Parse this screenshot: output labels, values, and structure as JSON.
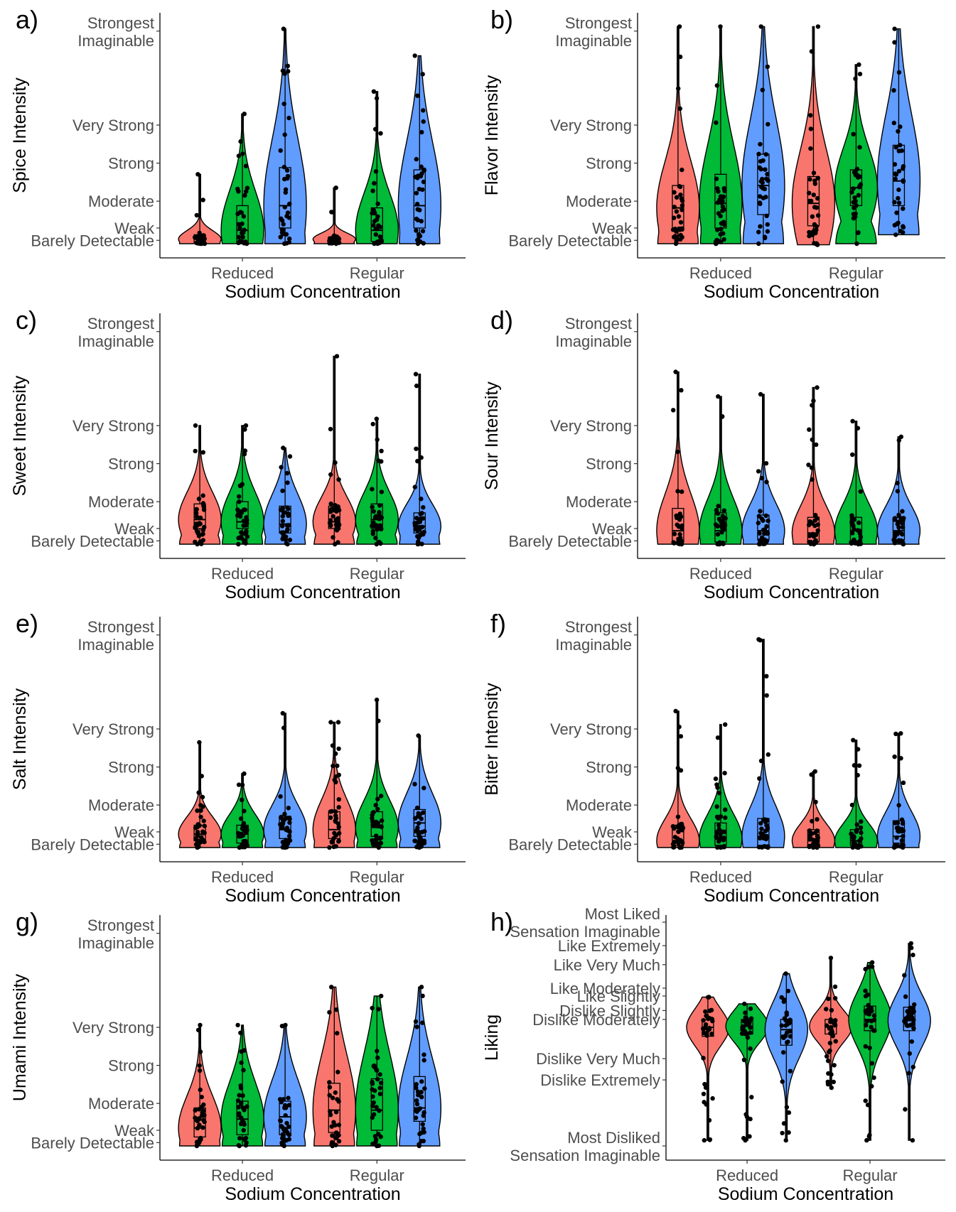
{
  "colors": {
    "red": "#F8766D",
    "green": "#00BA38",
    "blue": "#619CFF"
  },
  "scales": {
    "intensity": [
      "Strongest Imaginable",
      "Very Strong",
      "Strong",
      "Moderate",
      "Weak",
      "Barely Detectable"
    ],
    "liking": [
      "Most Liked Sensation Imaginable",
      "Like Extremely",
      "Like Very Much",
      "Like Moderately",
      "Like Slightly",
      "Dislike Slightly",
      "Dislike Moderately",
      "Dislike Very Much",
      "Dislike Extremely",
      "Most Disliked Sensation Imaginable"
    ]
  },
  "chart_data": [
    {
      "panel": "a)",
      "type": "violin",
      "ylabel": "Spice Intensity",
      "xlabel": "Sodium Concentration",
      "categories": [
        "Reduced",
        "Regular"
      ],
      "y_scale": "intensity",
      "ylim": [
        0,
        100
      ],
      "groups": [
        {
          "category": "Reduced",
          "color": "red",
          "min": 0,
          "q1": 0.5,
          "median": 2,
          "q3": 4,
          "max": 31
        },
        {
          "category": "Reduced",
          "color": "green",
          "min": 0,
          "q1": 1,
          "median": 6,
          "q3": 17,
          "max": 58
        },
        {
          "category": "Reduced",
          "color": "blue",
          "min": 0,
          "q1": 7,
          "median": 17,
          "q3": 34,
          "max": 96
        },
        {
          "category": "Regular",
          "color": "red",
          "min": 0,
          "q1": 0.5,
          "median": 2,
          "q3": 3,
          "max": 25
        },
        {
          "category": "Regular",
          "color": "green",
          "min": 0,
          "q1": 1,
          "median": 6,
          "q3": 16,
          "max": 68
        },
        {
          "category": "Regular",
          "color": "blue",
          "min": 0,
          "q1": 7,
          "median": 17,
          "q3": 33,
          "max": 84
        }
      ]
    },
    {
      "panel": "b)",
      "type": "violin",
      "ylabel": "Flavor Intensity",
      "xlabel": "Sodium Concentration",
      "categories": [
        "Reduced",
        "Regular"
      ],
      "y_scale": "intensity",
      "ylim": [
        0,
        100
      ],
      "groups": [
        {
          "category": "Reduced",
          "color": "red",
          "min": 0,
          "q1": 7,
          "median": 16,
          "q3": 26,
          "max": 97
        },
        {
          "category": "Reduced",
          "color": "green",
          "min": 0,
          "q1": 7,
          "median": 18,
          "q3": 31,
          "max": 97
        },
        {
          "category": "Reduced",
          "color": "blue",
          "min": 0,
          "q1": 13,
          "median": 26,
          "q3": 40,
          "max": 97
        },
        {
          "category": "Regular",
          "color": "red",
          "min": -0.5,
          "q1": 8,
          "median": 18,
          "q3": 30,
          "max": 97
        },
        {
          "category": "Regular",
          "color": "green",
          "min": 0,
          "q1": 17,
          "median": 25,
          "q3": 33,
          "max": 80
        },
        {
          "category": "Regular",
          "color": "blue",
          "min": 4,
          "q1": 17,
          "median": 28,
          "q3": 44,
          "max": 96
        }
      ]
    },
    {
      "panel": "c)",
      "type": "violin",
      "ylabel": "Sweet Intensity",
      "xlabel": "Sodium Concentration",
      "categories": [
        "Reduced",
        "Regular"
      ],
      "y_scale": "intensity",
      "ylim": [
        0,
        100
      ],
      "groups": [
        {
          "category": "Reduced",
          "color": "red",
          "min": 0,
          "q1": 7,
          "median": 11,
          "q3": 18,
          "max": 53
        },
        {
          "category": "Reduced",
          "color": "green",
          "min": 0,
          "q1": 7,
          "median": 10,
          "q3": 19,
          "max": 53
        },
        {
          "category": "Reduced",
          "color": "blue",
          "min": 0,
          "q1": 5,
          "median": 9,
          "q3": 17,
          "max": 43
        },
        {
          "category": "Regular",
          "color": "red",
          "min": 0,
          "q1": 7,
          "median": 10,
          "q3": 17,
          "max": 84
        },
        {
          "category": "Regular",
          "color": "green",
          "min": 0,
          "q1": 7,
          "median": 11,
          "q3": 18,
          "max": 56
        },
        {
          "category": "Regular",
          "color": "blue",
          "min": 0,
          "q1": 5,
          "median": 8,
          "q3": 14,
          "max": 76
        }
      ]
    },
    {
      "panel": "d)",
      "type": "violin",
      "ylabel": "Sour Intensity",
      "xlabel": "Sodium Concentration",
      "categories": [
        "Reduced",
        "Regular"
      ],
      "y_scale": "intensity",
      "ylim": [
        0,
        100
      ],
      "groups": [
        {
          "category": "Reduced",
          "color": "red",
          "min": 0,
          "q1": 1,
          "median": 6,
          "q3": 16,
          "max": 77
        },
        {
          "category": "Reduced",
          "color": "green",
          "min": 0,
          "q1": 1,
          "median": 6,
          "q3": 14,
          "max": 66
        },
        {
          "category": "Reduced",
          "color": "blue",
          "min": 0,
          "q1": 2,
          "median": 6,
          "q3": 13,
          "max": 67
        },
        {
          "category": "Regular",
          "color": "red",
          "min": 0,
          "q1": 1,
          "median": 5,
          "q3": 12,
          "max": 70
        },
        {
          "category": "Regular",
          "color": "green",
          "min": 0,
          "q1": 1,
          "median": 6,
          "q3": 12,
          "max": 55
        },
        {
          "category": "Regular",
          "color": "blue",
          "min": 0,
          "q1": 2,
          "median": 6,
          "q3": 12,
          "max": 48
        }
      ]
    },
    {
      "panel": "e)",
      "type": "violin",
      "ylabel": "Salt Intensity",
      "xlabel": "Sodium Concentration",
      "categories": [
        "Reduced",
        "Regular"
      ],
      "y_scale": "intensity",
      "ylim": [
        0,
        100
      ],
      "groups": [
        {
          "category": "Reduced",
          "color": "red",
          "min": 0,
          "q1": 3,
          "median": 6,
          "q3": 10,
          "max": 47
        },
        {
          "category": "Reduced",
          "color": "green",
          "min": 0,
          "q1": 2,
          "median": 6,
          "q3": 10,
          "max": 33
        },
        {
          "category": "Reduced",
          "color": "blue",
          "min": 0,
          "q1": 4,
          "median": 8,
          "q3": 14,
          "max": 60
        },
        {
          "category": "Regular",
          "color": "red",
          "min": 0,
          "q1": 4,
          "median": 8,
          "q3": 16,
          "max": 56
        },
        {
          "category": "Regular",
          "color": "green",
          "min": 0,
          "q1": 5,
          "median": 9,
          "q3": 16,
          "max": 66
        },
        {
          "category": "Regular",
          "color": "blue",
          "min": 0,
          "q1": 5,
          "median": 11,
          "q3": 17,
          "max": 50
        }
      ]
    },
    {
      "panel": "f)",
      "type": "violin",
      "ylabel": "Bitter Intensity",
      "xlabel": "Sodium Concentration",
      "categories": [
        "Reduced",
        "Regular"
      ],
      "y_scale": "intensity",
      "ylim": [
        0,
        100
      ],
      "groups": [
        {
          "category": "Reduced",
          "color": "red",
          "min": 0,
          "q1": 1,
          "median": 3,
          "q3": 10,
          "max": 61
        },
        {
          "category": "Reduced",
          "color": "green",
          "min": 0,
          "q1": 1,
          "median": 4,
          "q3": 11,
          "max": 55
        },
        {
          "category": "Reduced",
          "color": "blue",
          "min": 0,
          "q1": 1,
          "median": 5,
          "q3": 13,
          "max": 93
        },
        {
          "category": "Regular",
          "color": "red",
          "min": 0,
          "q1": 1,
          "median": 3,
          "q3": 8,
          "max": 34
        },
        {
          "category": "Regular",
          "color": "green",
          "min": 0,
          "q1": 1,
          "median": 3,
          "q3": 8,
          "max": 48
        },
        {
          "category": "Regular",
          "color": "blue",
          "min": 0,
          "q1": 2,
          "median": 5,
          "q3": 12,
          "max": 51
        }
      ]
    },
    {
      "panel": "g)",
      "type": "violin",
      "ylabel": "Umami Intensity",
      "xlabel": "Sodium Concentration",
      "categories": [
        "Reduced",
        "Regular"
      ],
      "y_scale": "intensity",
      "ylim": [
        0,
        100
      ],
      "groups": [
        {
          "category": "Reduced",
          "color": "red",
          "min": 0,
          "q1": 4,
          "median": 8,
          "q3": 17,
          "max": 54
        },
        {
          "category": "Reduced",
          "color": "green",
          "min": 0,
          "q1": 5,
          "median": 12,
          "q3": 20,
          "max": 54
        },
        {
          "category": "Reduced",
          "color": "blue",
          "min": 0,
          "q1": 5,
          "median": 13,
          "q3": 20,
          "max": 54
        },
        {
          "category": "Regular",
          "color": "red",
          "min": 0,
          "q1": 6,
          "median": 16,
          "q3": 28,
          "max": 71
        },
        {
          "category": "Regular",
          "color": "green",
          "min": 0,
          "q1": 7,
          "median": 16,
          "q3": 30,
          "max": 67
        },
        {
          "category": "Regular",
          "color": "blue",
          "min": 0,
          "q1": 11,
          "median": 17,
          "q3": 31,
          "max": 71
        }
      ]
    },
    {
      "panel": "h)",
      "type": "violin",
      "ylabel": "Liking",
      "xlabel": "Sodium Concentration",
      "categories": [
        "Reduced",
        "Regular"
      ],
      "y_scale": "liking",
      "ylim": [
        -100,
        100
      ],
      "groups": [
        {
          "category": "Reduced",
          "color": "red",
          "min": -95,
          "q1": -2,
          "median": 6,
          "q3": 13,
          "max": 33
        },
        {
          "category": "Reduced",
          "color": "green",
          "min": -95,
          "q1": 0,
          "median": 7,
          "q3": 13,
          "max": 27
        },
        {
          "category": "Reduced",
          "color": "blue",
          "min": -95,
          "q1": -10,
          "median": 4,
          "q3": 13,
          "max": 54
        },
        {
          "category": "Regular",
          "color": "red",
          "min": -48,
          "q1": 0,
          "median": 7,
          "q3": 13,
          "max": 68
        },
        {
          "category": "Regular",
          "color": "green",
          "min": -95,
          "q1": 3,
          "median": 13,
          "q3": 25,
          "max": 64
        },
        {
          "category": "Regular",
          "color": "blue",
          "min": -95,
          "q1": 3,
          "median": 12,
          "q3": 24,
          "max": 81
        }
      ]
    }
  ]
}
